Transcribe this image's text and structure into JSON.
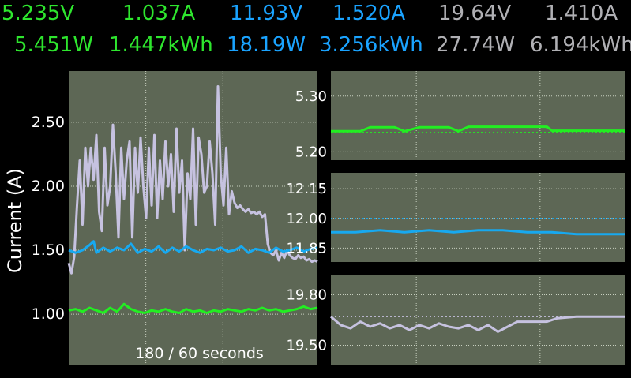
{
  "colors": {
    "rail1": "#22ee22",
    "rail2": "#17a9f0",
    "rail3": "#c6c2e0",
    "plot_bg": "#5d6755",
    "grid": "#c8d0c0",
    "background": "#000000"
  },
  "readouts": {
    "rail1": {
      "voltage": "5.235V",
      "current": "1.037A",
      "power": "5.451W",
      "energy": "1.447kWh"
    },
    "rail2": {
      "voltage": "11.93V",
      "current": "1.520A",
      "power": "18.19W",
      "energy": "3.256kWh"
    },
    "rail3": {
      "voltage": "19.64V",
      "current": "1.410A",
      "power": "27.74W",
      "energy": "6.194kWh"
    }
  },
  "chart_data": [
    {
      "type": "line",
      "ylabel": "Current (A)",
      "annotation": "180 / 60 seconds",
      "xlim": [
        0,
        180
      ],
      "ylim": [
        0.6,
        2.9
      ],
      "yticks": [
        "1.00",
        "1.50",
        "2.00",
        "2.50"
      ],
      "grid": true,
      "series": [
        {
          "color_key": "rail3",
          "points": [
            [
              0,
              1.4
            ],
            [
              2,
              1.32
            ],
            [
              4,
              1.45
            ],
            [
              6,
              1.85
            ],
            [
              8,
              2.2
            ],
            [
              10,
              1.7
            ],
            [
              12,
              2.3
            ],
            [
              14,
              2.0
            ],
            [
              16,
              2.3
            ],
            [
              18,
              2.05
            ],
            [
              20,
              2.4
            ],
            [
              22,
              1.8
            ],
            [
              24,
              1.65
            ],
            [
              26,
              2.3
            ],
            [
              28,
              1.85
            ],
            [
              30,
              2.0
            ],
            [
              32,
              2.48
            ],
            [
              34,
              2.1
            ],
            [
              36,
              1.6
            ],
            [
              38,
              2.3
            ],
            [
              40,
              1.9
            ],
            [
              42,
              2.2
            ],
            [
              44,
              2.35
            ],
            [
              46,
              1.6
            ],
            [
              48,
              2.3
            ],
            [
              50,
              1.95
            ],
            [
              52,
              2.38
            ],
            [
              54,
              2.0
            ],
            [
              56,
              1.75
            ],
            [
              58,
              2.3
            ],
            [
              60,
              1.85
            ],
            [
              62,
              2.4
            ],
            [
              64,
              1.75
            ],
            [
              66,
              2.2
            ],
            [
              68,
              1.9
            ],
            [
              70,
              2.35
            ],
            [
              72,
              2.0
            ],
            [
              74,
              2.25
            ],
            [
              76,
              1.8
            ],
            [
              78,
              2.45
            ],
            [
              80,
              1.95
            ],
            [
              82,
              2.2
            ],
            [
              84,
              1.5
            ],
            [
              86,
              2.1
            ],
            [
              88,
              1.9
            ],
            [
              90,
              2.45
            ],
            [
              92,
              1.7
            ],
            [
              94,
              2.38
            ],
            [
              96,
              2.25
            ],
            [
              98,
              1.95
            ],
            [
              100,
              2.0
            ],
            [
              102,
              2.35
            ],
            [
              104,
              2.1
            ],
            [
              106,
              1.7
            ],
            [
              108,
              2.78
            ],
            [
              110,
              2.1
            ],
            [
              112,
              1.85
            ],
            [
              114,
              2.3
            ],
            [
              116,
              1.78
            ],
            [
              118,
              1.96
            ],
            [
              120,
              1.87
            ],
            [
              122,
              1.83
            ],
            [
              124,
              1.85
            ],
            [
              126,
              1.82
            ],
            [
              128,
              1.8
            ],
            [
              130,
              1.82
            ],
            [
              132,
              1.79
            ],
            [
              134,
              1.8
            ],
            [
              136,
              1.78
            ],
            [
              138,
              1.8
            ],
            [
              140,
              1.76
            ],
            [
              142,
              1.78
            ],
            [
              144,
              1.55
            ],
            [
              146,
              1.48
            ],
            [
              148,
              1.46
            ],
            [
              150,
              1.5
            ],
            [
              152,
              1.42
            ],
            [
              154,
              1.48
            ],
            [
              156,
              1.44
            ],
            [
              158,
              1.5
            ],
            [
              160,
              1.46
            ],
            [
              162,
              1.44
            ],
            [
              164,
              1.43
            ],
            [
              166,
              1.46
            ],
            [
              168,
              1.44
            ],
            [
              170,
              1.45
            ],
            [
              172,
              1.42
            ],
            [
              174,
              1.43
            ],
            [
              176,
              1.41
            ],
            [
              178,
              1.42
            ],
            [
              180,
              1.41
            ]
          ]
        },
        {
          "color_key": "rail2",
          "points": [
            [
              0,
              1.5
            ],
            [
              5,
              1.48
            ],
            [
              10,
              1.5
            ],
            [
              15,
              1.54
            ],
            [
              18,
              1.57
            ],
            [
              20,
              1.48
            ],
            [
              25,
              1.52
            ],
            [
              30,
              1.49
            ],
            [
              35,
              1.52
            ],
            [
              40,
              1.5
            ],
            [
              45,
              1.55
            ],
            [
              50,
              1.48
            ],
            [
              55,
              1.51
            ],
            [
              60,
              1.49
            ],
            [
              65,
              1.53
            ],
            [
              70,
              1.48
            ],
            [
              75,
              1.52
            ],
            [
              80,
              1.49
            ],
            [
              85,
              1.53
            ],
            [
              90,
              1.5
            ],
            [
              95,
              1.48
            ],
            [
              100,
              1.51
            ],
            [
              105,
              1.5
            ],
            [
              110,
              1.52
            ],
            [
              115,
              1.49
            ],
            [
              120,
              1.5
            ],
            [
              125,
              1.53
            ],
            [
              130,
              1.48
            ],
            [
              135,
              1.51
            ],
            [
              140,
              1.5
            ],
            [
              145,
              1.48
            ],
            [
              150,
              1.52
            ],
            [
              155,
              1.49
            ],
            [
              160,
              1.5
            ],
            [
              165,
              1.52
            ],
            [
              170,
              1.49
            ],
            [
              175,
              1.51
            ],
            [
              180,
              1.52
            ]
          ]
        },
        {
          "color_key": "rail1",
          "points": [
            [
              0,
              1.03
            ],
            [
              5,
              1.04
            ],
            [
              10,
              1.02
            ],
            [
              15,
              1.05
            ],
            [
              20,
              1.03
            ],
            [
              25,
              1.01
            ],
            [
              30,
              1.05
            ],
            [
              35,
              1.02
            ],
            [
              40,
              1.08
            ],
            [
              45,
              1.04
            ],
            [
              50,
              1.02
            ],
            [
              55,
              1.01
            ],
            [
              60,
              1.03
            ],
            [
              65,
              1.02
            ],
            [
              70,
              1.04
            ],
            [
              75,
              1.02
            ],
            [
              80,
              1.01
            ],
            [
              85,
              1.04
            ],
            [
              90,
              1.02
            ],
            [
              95,
              1.03
            ],
            [
              100,
              1.01
            ],
            [
              105,
              1.03
            ],
            [
              110,
              1.02
            ],
            [
              115,
              1.04
            ],
            [
              120,
              1.03
            ],
            [
              125,
              1.02
            ],
            [
              130,
              1.04
            ],
            [
              135,
              1.03
            ],
            [
              140,
              1.05
            ],
            [
              145,
              1.03
            ],
            [
              150,
              1.04
            ],
            [
              155,
              1.02
            ],
            [
              160,
              1.03
            ],
            [
              165,
              1.04
            ],
            [
              170,
              1.06
            ],
            [
              175,
              1.04
            ],
            [
              180,
              1.05
            ]
          ]
        }
      ]
    },
    {
      "type": "line",
      "xlim": [
        0,
        60
      ],
      "ylim": [
        5.185,
        5.345
      ],
      "yticks": [
        "5.20",
        "5.30"
      ],
      "reference_line": 5.235,
      "grid": true,
      "series": [
        {
          "color_key": "rail1",
          "points": [
            [
              0,
              5.237
            ],
            [
              6,
              5.237
            ],
            [
              8,
              5.244
            ],
            [
              13,
              5.244
            ],
            [
              15,
              5.237
            ],
            [
              18,
              5.244
            ],
            [
              24,
              5.244
            ],
            [
              26,
              5.237
            ],
            [
              28,
              5.245
            ],
            [
              44,
              5.245
            ],
            [
              45,
              5.238
            ],
            [
              60,
              5.238
            ]
          ]
        }
      ]
    },
    {
      "type": "line",
      "xlim": [
        0,
        60
      ],
      "ylim": [
        11.78,
        12.23
      ],
      "yticks": [
        "11.85",
        "12.00",
        "12.15"
      ],
      "reference_line": 12.0,
      "grid": true,
      "series": [
        {
          "color_key": "rail2",
          "points": [
            [
              0,
              11.93
            ],
            [
              5,
              11.93
            ],
            [
              10,
              11.94
            ],
            [
              15,
              11.93
            ],
            [
              20,
              11.94
            ],
            [
              25,
              11.93
            ],
            [
              30,
              11.94
            ],
            [
              35,
              11.94
            ],
            [
              40,
              11.93
            ],
            [
              45,
              11.93
            ],
            [
              50,
              11.92
            ],
            [
              55,
              11.92
            ],
            [
              60,
              11.92
            ]
          ]
        }
      ]
    },
    {
      "type": "line",
      "xlim": [
        0,
        60
      ],
      "ylim": [
        19.38,
        19.92
      ],
      "yticks": [
        "19.50",
        "19.80"
      ],
      "reference_line": 19.67,
      "grid": true,
      "series": [
        {
          "color_key": "rail3",
          "points": [
            [
              0,
              19.67
            ],
            [
              2,
              19.62
            ],
            [
              4,
              19.6
            ],
            [
              6,
              19.64
            ],
            [
              8,
              19.61
            ],
            [
              10,
              19.63
            ],
            [
              12,
              19.6
            ],
            [
              14,
              19.62
            ],
            [
              16,
              19.59
            ],
            [
              18,
              19.62
            ],
            [
              20,
              19.6
            ],
            [
              22,
              19.63
            ],
            [
              24,
              19.61
            ],
            [
              26,
              19.6
            ],
            [
              28,
              19.62
            ],
            [
              30,
              19.59
            ],
            [
              32,
              19.62
            ],
            [
              34,
              19.58
            ],
            [
              36,
              19.61
            ],
            [
              38,
              19.64
            ],
            [
              40,
              19.64
            ],
            [
              44,
              19.64
            ],
            [
              46,
              19.66
            ],
            [
              50,
              19.67
            ],
            [
              55,
              19.67
            ],
            [
              60,
              19.67
            ]
          ]
        }
      ]
    }
  ]
}
